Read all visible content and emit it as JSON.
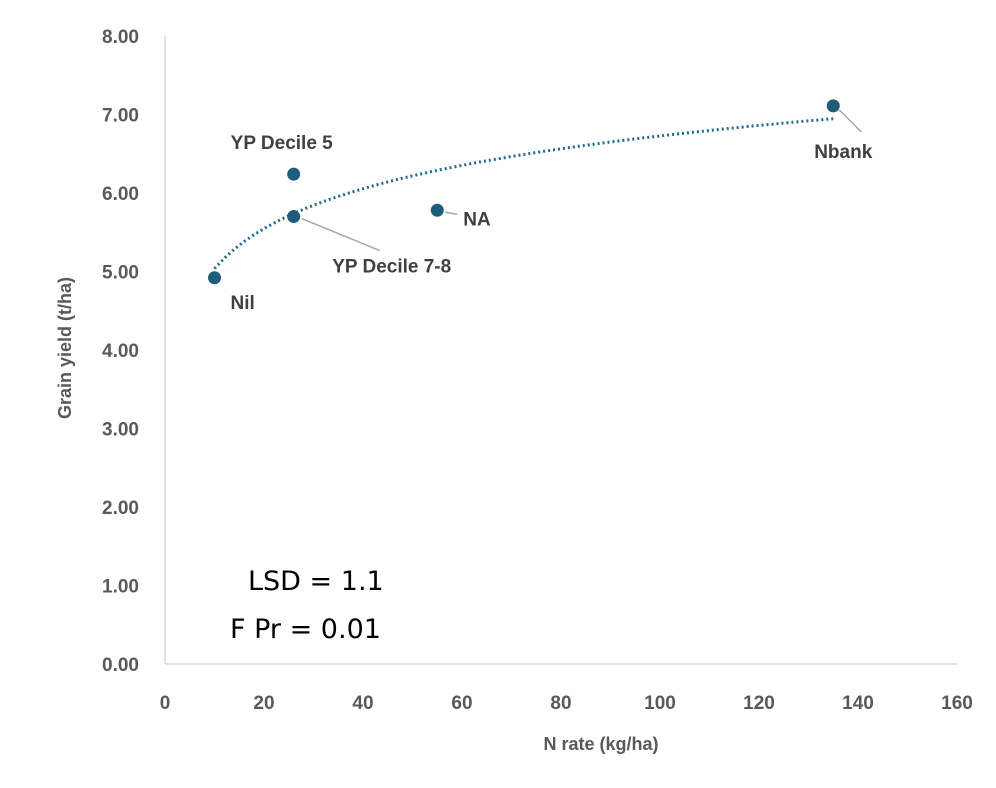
{
  "chart_data": {
    "type": "scatter",
    "title": "",
    "xlabel": "N rate (kg/ha)",
    "ylabel": "Grain yield (t/ha)",
    "xlim": [
      0,
      160
    ],
    "ylim": [
      0,
      8
    ],
    "x_ticks": [
      0,
      20,
      40,
      60,
      80,
      100,
      120,
      140,
      160
    ],
    "y_ticks": [
      "0.00",
      "1.00",
      "2.00",
      "3.00",
      "4.00",
      "5.00",
      "6.00",
      "7.00",
      "8.00"
    ],
    "grid": false,
    "marker_color": "#1f5c7a",
    "trendline_color": "#1f6b86",
    "trendline": "dotted, curved (logarithmic-style) fit",
    "points": [
      {
        "label": "Nil",
        "x": 10,
        "y": 4.92
      },
      {
        "label": "YP Decile 5",
        "x": 26,
        "y": 6.24
      },
      {
        "label": "YP Decile 7-8",
        "x": 26,
        "y": 5.7
      },
      {
        "label": "NA",
        "x": 55,
        "y": 5.78
      },
      {
        "label": "Nbank",
        "x": 135,
        "y": 7.11
      }
    ],
    "annotations": [
      "LSD = 1.1",
      "F Pr = 0.01"
    ]
  }
}
